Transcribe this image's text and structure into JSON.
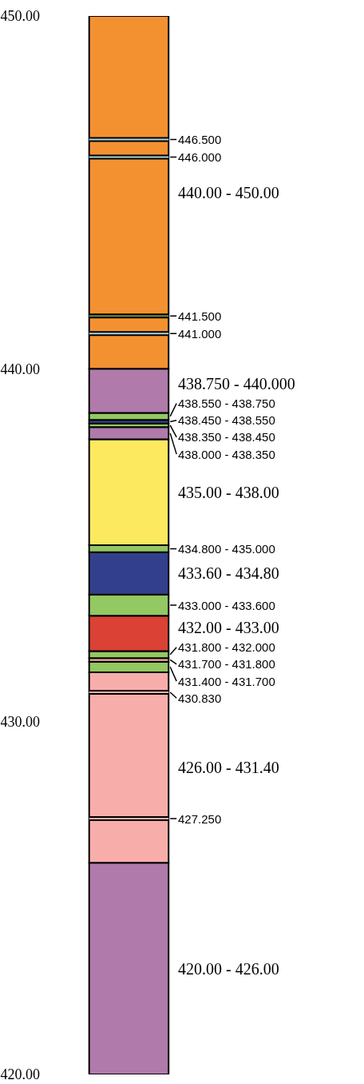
{
  "chart_data": {
    "type": "bar",
    "categories": [
      null
    ],
    "ylim": [
      420,
      450
    ],
    "yticks": [
      {
        "value": 420,
        "label": "420.00"
      },
      {
        "value": 430,
        "label": "430.00"
      },
      {
        "value": 440,
        "label": "440.00"
      },
      {
        "value": 450,
        "label": "450.00"
      }
    ],
    "tick_labels": "y",
    "series": [
      {
        "color": "#b07aab",
        "base": [
          420
        ],
        "values": [
          6
        ]
      },
      {
        "color": "#f7aeaa",
        "base": [
          426
        ],
        "values": [
          5.4
        ]
      },
      {
        "color": "#93c862",
        "base": [
          431.4
        ],
        "values": [
          0.3
        ]
      },
      {
        "color": "#f7aeaa",
        "base": [
          431.7
        ],
        "values": [
          0.1
        ]
      },
      {
        "color": "#93c862",
        "base": [
          431.8
        ],
        "values": [
          0.2
        ]
      },
      {
        "color": "#db4135",
        "base": [
          432
        ],
        "values": [
          1
        ]
      },
      {
        "color": "#93c862",
        "base": [
          433
        ],
        "values": [
          0.6
        ]
      },
      {
        "color": "#323f8c",
        "base": [
          433.6
        ],
        "values": [
          1.2
        ]
      },
      {
        "color": "#93c862",
        "base": [
          434.8
        ],
        "values": [
          0.2
        ]
      },
      {
        "color": "#fde95f",
        "base": [
          435
        ],
        "values": [
          3
        ]
      },
      {
        "color": "#b07aab",
        "base": [
          438
        ],
        "values": [
          0.35
        ]
      },
      {
        "color": "#93c862",
        "base": [
          438.35
        ],
        "values": [
          0.1
        ]
      },
      {
        "color": "#323f8c",
        "base": [
          438.45
        ],
        "values": [
          0.1
        ]
      },
      {
        "color": "#93c862",
        "base": [
          438.55
        ],
        "values": [
          0.2
        ]
      },
      {
        "color": "#b07aab",
        "base": [
          438.75
        ],
        "values": [
          1.25
        ]
      },
      {
        "color": "#f39131",
        "base": [
          440
        ],
        "values": [
          10
        ]
      }
    ],
    "annotations": [
      "440.00 - 450.00",
      "438.750 - 440.000",
      "438.550 - 438.750",
      "438.450 - 438.550",
      "438.350 - 438.450",
      "438.000 - 438.350",
      "435.00 - 438.00",
      "434.800 - 435.000",
      "433.60 - 434.80",
      "433.000 - 433.600",
      "432.00 - 433.00",
      "431.800 - 432.000",
      "431.700 - 431.800",
      "431.400 - 431.700",
      "426.00 - 431.40",
      "420.00 - 426.00"
    ],
    "ref_lines": [
      {
        "axis": "y",
        "value": 446.5,
        "label": "446.500",
        "color": "#a8d8e0"
      },
      {
        "axis": "y",
        "value": 446.0,
        "label": "446.000",
        "color": "#a8d8e0"
      },
      {
        "axis": "y",
        "value": 441.5,
        "label": "441.500",
        "color": "#6b8e3a"
      },
      {
        "axis": "y",
        "value": 441.0,
        "label": "441.000",
        "color": "#a8d8e0"
      },
      {
        "axis": "y",
        "value": 430.83,
        "label": "430.830",
        "color": "#f7aeaa"
      },
      {
        "axis": "y",
        "value": 427.25,
        "label": "427.250",
        "color": "#f7aeaa"
      }
    ]
  }
}
